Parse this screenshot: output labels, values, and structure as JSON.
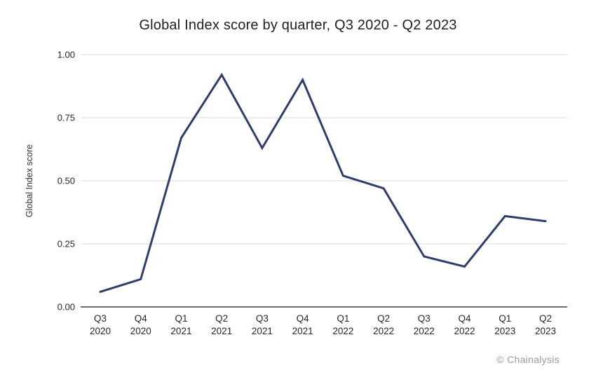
{
  "page": {
    "background": "#ffffff"
  },
  "attribution": "© Chainalysis",
  "colors": {
    "line": "#2f3d6d",
    "grid": "#d9d9d9",
    "axis": "#3d3d3d",
    "title_text": "#1f1f1f",
    "tick_text": "#262626",
    "axis_label_text": "#333333",
    "attribution_text": "#9a9a9a"
  },
  "chart_data": {
    "type": "line",
    "title": "Global Index score by quarter, Q3 2020 - Q2 2023",
    "xlabel": "",
    "ylabel": "Global Index score",
    "series_name": "Global Index score",
    "categories": [
      "Q3 2020",
      "Q4 2020",
      "Q1 2021",
      "Q2 2021",
      "Q3 2021",
      "Q4 2021",
      "Q1 2022",
      "Q2 2022",
      "Q3 2022",
      "Q4 2022",
      "Q1 2023",
      "Q2 2023"
    ],
    "values": [
      0.06,
      0.11,
      0.67,
      0.92,
      0.63,
      0.9,
      0.52,
      0.47,
      0.2,
      0.16,
      0.36,
      0.34
    ],
    "ylim": [
      0,
      1
    ],
    "yticks": [
      0,
      0.25,
      0.5,
      0.75,
      1
    ],
    "ytick_labels": [
      "0.00",
      "0.25",
      "0.50",
      "0.75",
      "1.00"
    ],
    "grid": true,
    "legend": false
  }
}
